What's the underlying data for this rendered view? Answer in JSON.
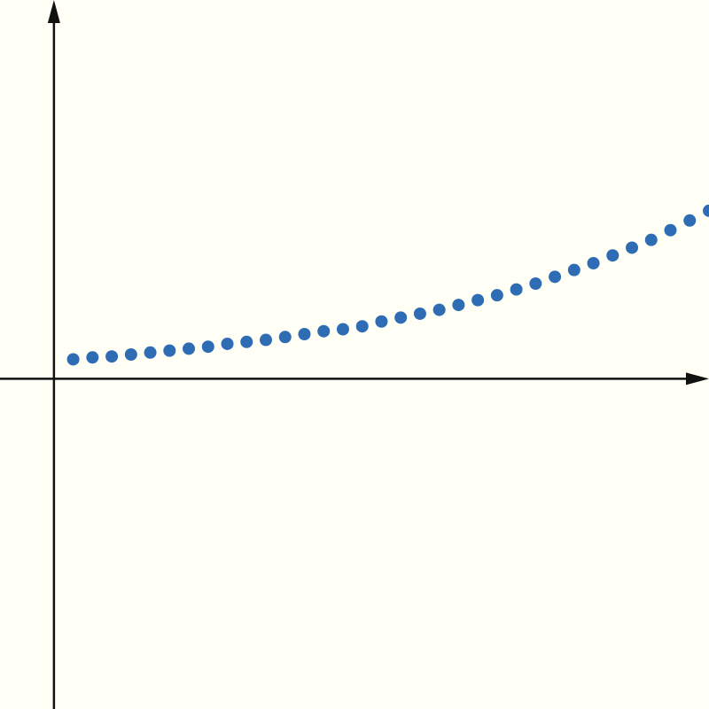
{
  "chart_data": {
    "type": "scatter",
    "title": "",
    "xlabel": "",
    "ylabel": "",
    "grid": false,
    "legend": "none",
    "xlim": [
      -2.8,
      34.0
    ],
    "ylim": [
      -17.0,
      19.5
    ],
    "series": [
      {
        "color": "#2e6db4",
        "x": [
          1,
          2,
          3,
          4,
          5,
          6,
          7,
          8,
          9,
          10,
          11,
          12,
          13,
          14,
          15,
          16,
          17,
          18,
          19,
          20,
          21,
          22,
          23,
          24,
          25,
          26,
          27,
          28,
          29,
          30,
          31,
          32,
          33,
          34
        ],
        "y": [
          1.0,
          1.1,
          1.15,
          1.25,
          1.35,
          1.45,
          1.55,
          1.65,
          1.8,
          1.9,
          2.0,
          2.15,
          2.3,
          2.45,
          2.55,
          2.7,
          2.95,
          3.15,
          3.35,
          3.55,
          3.8,
          4.05,
          4.3,
          4.6,
          4.9,
          5.25,
          5.6,
          5.95,
          6.35,
          6.75,
          7.15,
          7.65,
          8.15,
          8.65
        ]
      }
    ]
  },
  "colors": {
    "background": "#fffff5",
    "axis": "#111111",
    "marker": "#2e6db4"
  }
}
